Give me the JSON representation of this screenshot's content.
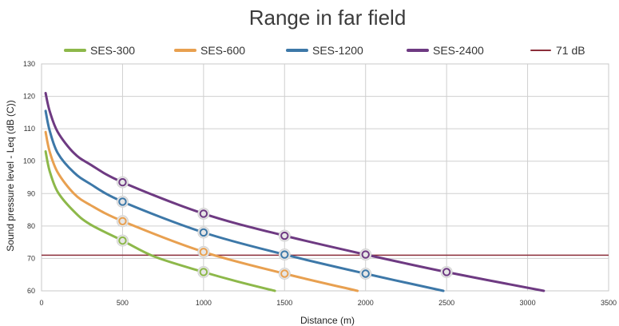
{
  "chart_data": {
    "type": "line",
    "title": "Range in far field",
    "xlabel": "Distance (m)",
    "ylabel": "Sound pressure level - Leq (dB (C))",
    "xlim": [
      0,
      3500
    ],
    "ylim": [
      60,
      130
    ],
    "x_ticks": [
      0,
      500,
      1000,
      1500,
      2000,
      2500,
      3000,
      3500
    ],
    "y_ticks": [
      60,
      70,
      80,
      90,
      100,
      110,
      120,
      130
    ],
    "grid": true,
    "legend_position": "top",
    "series": [
      {
        "name": "SES-300",
        "color": "#8db84a",
        "x": [
          25,
          50,
          100,
          200,
          300,
          500,
          700,
          1000,
          1200,
          1440
        ],
        "y": [
          103,
          97,
          90.5,
          84.5,
          80.5,
          75.5,
          70.5,
          65.8,
          63,
          60
        ],
        "markers": [
          [
            500,
            75.5
          ],
          [
            1000,
            65.8
          ]
        ]
      },
      {
        "name": "SES-600",
        "color": "#e8a050",
        "x": [
          25,
          50,
          100,
          200,
          300,
          500,
          1000,
          1500,
          1950
        ],
        "y": [
          109,
          103,
          96.5,
          90,
          86.5,
          81.5,
          72,
          65.3,
          60
        ],
        "markers": [
          [
            500,
            81.5
          ],
          [
            1000,
            72
          ],
          [
            1500,
            65.3
          ]
        ]
      },
      {
        "name": "SES-1200",
        "color": "#3d78a8",
        "x": [
          25,
          50,
          100,
          200,
          300,
          500,
          1000,
          1500,
          2000,
          2480
        ],
        "y": [
          115.5,
          109.5,
          102.5,
          96.5,
          93,
          87.5,
          78,
          71.2,
          65.3,
          60
        ],
        "markers": [
          [
            500,
            87.5
          ],
          [
            1000,
            78
          ],
          [
            1500,
            71.2
          ],
          [
            2000,
            65.3
          ]
        ]
      },
      {
        "name": "SES-2400",
        "color": "#6e3a82",
        "x": [
          25,
          50,
          100,
          200,
          300,
          500,
          1000,
          1500,
          2000,
          2500,
          3100
        ],
        "y": [
          121,
          115.5,
          109,
          102.5,
          99,
          93.5,
          83.8,
          77,
          71.2,
          65.8,
          60
        ],
        "markers": [
          [
            500,
            93.5
          ],
          [
            1000,
            83.8
          ],
          [
            1500,
            77
          ],
          [
            2000,
            71.2
          ],
          [
            2500,
            65.8
          ]
        ]
      },
      {
        "name": "71 dB",
        "color": "#8b2e3a",
        "x": [
          0,
          3500
        ],
        "y": [
          71,
          71
        ]
      }
    ]
  }
}
